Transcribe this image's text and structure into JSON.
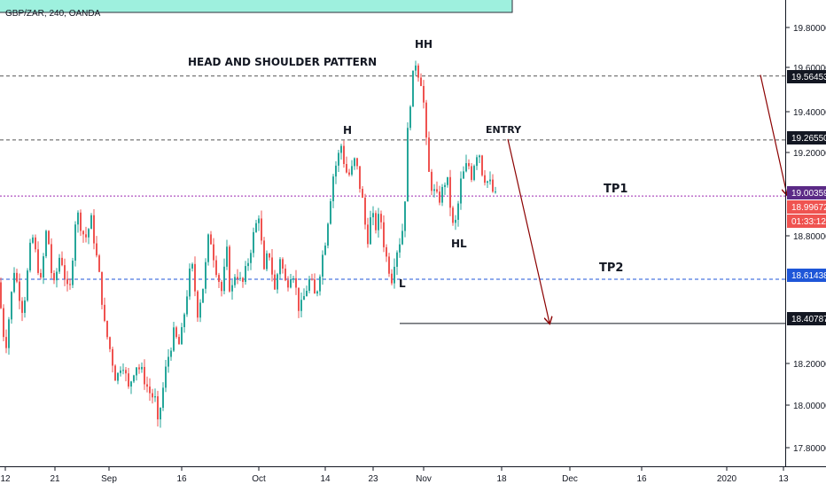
{
  "symbol_header": "GBP/ZAR, 240, OANDA",
  "title": "HEAD AND SHOULDER PATTERN",
  "colors": {
    "up": "#26a69a",
    "down": "#ef5350",
    "level_dashed": "#555555",
    "tp1_line": "#9c27b0",
    "tp2_line": "#1e56d8",
    "arrow": "#8b0000",
    "top_box": "#9ef0de"
  },
  "annotations": {
    "hh": "HH",
    "h": "H",
    "entry": "ENTRY",
    "tp1": "TP1",
    "tp2": "TP2",
    "hl": "HL",
    "l": "L"
  },
  "price_labels": {
    "l1": "19.56453",
    "l2": "19.26550",
    "l3": "19.00359",
    "l4": "18.99672",
    "l5": "01:33:12",
    "l6": "18.61438",
    "l7": "18.40787"
  },
  "chart_data": {
    "type": "candlestick",
    "ylim": [
      17.74,
      19.92
    ],
    "y_ticks": [
      "19.80000",
      "19.60000",
      "19.40000",
      "19.20000",
      "18.80000",
      "18.20000",
      "18.00000",
      "17.80000"
    ],
    "x_ticks": [
      "12",
      "21",
      "Sep",
      "16",
      "Oct",
      "14",
      "23",
      "Nov",
      "18",
      "Dec",
      "16",
      "2020",
      "13"
    ],
    "levels": [
      19.56453,
      19.2655,
      19.00359,
      18.61438,
      18.40787
    ],
    "waypoints": [
      [
        0,
        18.6
      ],
      [
        8,
        18.28
      ],
      [
        18,
        18.66
      ],
      [
        28,
        18.46
      ],
      [
        38,
        18.83
      ],
      [
        48,
        18.6
      ],
      [
        55,
        18.87
      ],
      [
        62,
        18.56
      ],
      [
        70,
        18.74
      ],
      [
        80,
        18.52
      ],
      [
        88,
        18.94
      ],
      [
        98,
        18.8
      ],
      [
        105,
        18.89
      ],
      [
        115,
        18.6
      ],
      [
        120,
        18.4
      ],
      [
        127,
        18.27
      ],
      [
        133,
        18.14
      ],
      [
        140,
        18.24
      ],
      [
        147,
        18.1
      ],
      [
        155,
        18.22
      ],
      [
        162,
        18.18
      ],
      [
        170,
        18.09
      ],
      [
        177,
        18.05
      ],
      [
        180,
        17.93
      ],
      [
        190,
        18.22
      ],
      [
        198,
        18.36
      ],
      [
        205,
        18.3
      ],
      [
        212,
        18.52
      ],
      [
        218,
        18.7
      ],
      [
        225,
        18.46
      ],
      [
        232,
        18.6
      ],
      [
        238,
        18.84
      ],
      [
        245,
        18.68
      ],
      [
        252,
        18.56
      ],
      [
        258,
        18.74
      ],
      [
        262,
        18.53
      ],
      [
        268,
        18.66
      ],
      [
        275,
        18.58
      ],
      [
        282,
        18.7
      ],
      [
        288,
        18.82
      ],
      [
        294,
        18.92
      ],
      [
        300,
        18.64
      ],
      [
        305,
        18.76
      ],
      [
        312,
        18.56
      ],
      [
        318,
        18.72
      ],
      [
        325,
        18.58
      ],
      [
        332,
        18.67
      ],
      [
        340,
        18.46
      ],
      [
        347,
        18.56
      ],
      [
        352,
        18.62
      ],
      [
        358,
        18.52
      ],
      [
        364,
        18.68
      ],
      [
        370,
        18.82
      ],
      [
        374,
        18.97
      ],
      [
        378,
        19.1
      ],
      [
        383,
        19.18
      ],
      [
        387,
        19.24
      ],
      [
        392,
        19.12
      ],
      [
        397,
        19.1
      ],
      [
        403,
        19.18
      ],
      [
        408,
        19.05
      ],
      [
        412,
        18.96
      ],
      [
        416,
        18.78
      ],
      [
        421,
        18.92
      ],
      [
        426,
        18.86
      ],
      [
        431,
        18.92
      ],
      [
        436,
        18.75
      ],
      [
        440,
        18.68
      ],
      [
        444,
        18.62
      ],
      [
        448,
        18.73
      ],
      [
        452,
        18.78
      ],
      [
        455,
        18.82
      ],
      [
        458,
        18.9
      ],
      [
        462,
        19.3
      ],
      [
        465,
        19.45
      ],
      [
        468,
        19.56
      ],
      [
        471,
        19.63
      ],
      [
        474,
        19.58
      ],
      [
        478,
        19.53
      ],
      [
        481,
        19.39
      ],
      [
        484,
        19.18
      ],
      [
        487,
        19.07
      ],
      [
        492,
        19.02
      ],
      [
        497,
        18.98
      ],
      [
        502,
        19.04
      ],
      [
        506,
        19.1
      ],
      [
        510,
        18.96
      ],
      [
        514,
        18.83
      ],
      [
        518,
        18.93
      ],
      [
        522,
        19.07
      ],
      [
        526,
        19.12
      ],
      [
        530,
        19.16
      ],
      [
        534,
        19.1
      ],
      [
        538,
        19.18
      ],
      [
        542,
        19.23
      ],
      [
        546,
        19.12
      ],
      [
        550,
        19.08
      ],
      [
        555,
        19.06
      ],
      [
        560,
        19.0
      ]
    ],
    "analysis_arrows": [
      {
        "from": [
          573,
          19.27
        ],
        "to": [
          620,
          18.41
        ]
      },
      {
        "from": [
          858,
          19.57
        ],
        "to": [
          888,
          19.01
        ]
      }
    ]
  }
}
